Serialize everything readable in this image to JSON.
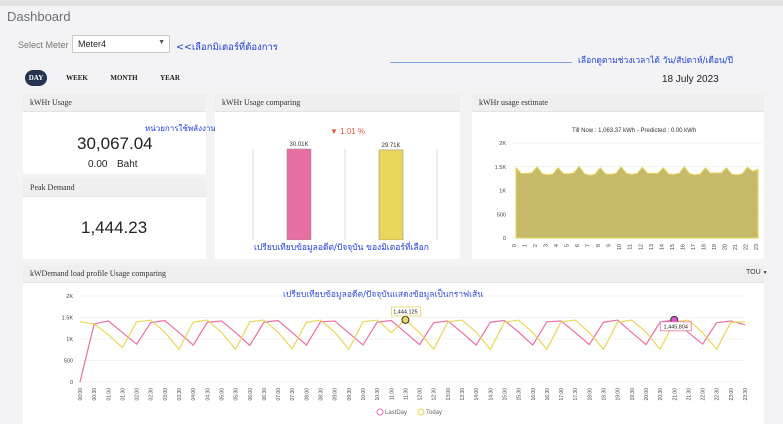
{
  "page_title": "Dashboard",
  "meter": {
    "label": "Select Meter",
    "value": "Meter4"
  },
  "annotations": {
    "select_meter": "<<เลือกมิเตอร์ที่ต้องการ",
    "date_pick": "เลือกดูตามช่วงเวลาได้ วัน/สัปดาห์/เดือน/ปี",
    "unit": "หน่วยการใช้พลังงาน",
    "compare": "เปรียบเทียบข้อมูลอดีต/ปัจจุบัน ของมิเตอร์ที่เลือก",
    "profile": "เปรียบเทียบข้อมูลอดีต/ปัจจุบันแสดงข้อมูลเป็นกราฟเส้น"
  },
  "tabs": [
    "DAY",
    "WEEK",
    "MONTH",
    "YEAR"
  ],
  "active_tab": "DAY",
  "date": "18 July 2023",
  "usage": {
    "title": "kWHr Usage",
    "value": "30,067.04",
    "baht_value": "0.00",
    "baht_unit": "Baht"
  },
  "peak": {
    "title": "Peak Demand",
    "value": "1,444.23"
  },
  "comparing": {
    "title": "kWHr Usage comparing",
    "change": "▼ 1.01 %"
  },
  "estimate": {
    "title": "kWHr usage estimate",
    "subtitle": "Till Now : 1,063.37 kWh - Predicted : 0.00 kWh"
  },
  "profile": {
    "title": "kWDemand load profile Usage comparing",
    "tou_label": "TOU"
  },
  "colors": {
    "pink": "#e86fa4",
    "yellow": "#ead65a",
    "olive": "#c6b96a",
    "navy": "#26334e",
    "annot_blue": "#1f3fd6",
    "down_red": "#e05b3d"
  },
  "chart_data": [
    {
      "type": "bar",
      "categories": [
        "",
        ""
      ],
      "values": [
        30.01,
        29.71
      ],
      "data_labels": [
        "30.01K",
        "29.71K"
      ],
      "colors": [
        "#e86fa4",
        "#ead65a"
      ]
    },
    {
      "type": "area",
      "title": "Till Now : 1,063.37 kWh - Predicted : 0.00 kWh",
      "x": [
        "0",
        "1",
        "2",
        "3",
        "4",
        "5",
        "6",
        "7",
        "8",
        "9",
        "10",
        "11",
        "12",
        "13",
        "14",
        "15",
        "16",
        "17",
        "18",
        "19",
        "20",
        "21",
        "22",
        "23"
      ],
      "y_ticks": [
        "0",
        "500",
        "1K",
        "1.5K",
        "2K"
      ],
      "ylim": [
        0,
        2000
      ],
      "values": [
        1480,
        1360,
        1500,
        1330,
        1480,
        1350,
        1510,
        1320,
        1480,
        1340,
        1500,
        1340,
        1490,
        1360,
        1480,
        1340,
        1500,
        1330,
        1480,
        1370,
        1480,
        1330,
        1490,
        1440
      ],
      "grid": true
    },
    {
      "type": "line",
      "x": [
        "00:00",
        "00:30",
        "01:00",
        "01:30",
        "02:00",
        "02:30",
        "03:00",
        "03:30",
        "04:00",
        "04:30",
        "05:00",
        "05:30",
        "06:00",
        "06:30",
        "07:00",
        "07:30",
        "08:00",
        "08:30",
        "09:00",
        "09:30",
        "10:00",
        "10:30",
        "11:00",
        "11:30",
        "12:00",
        "12:30",
        "13:00",
        "13:30",
        "14:00",
        "14:30",
        "15:00",
        "15:30",
        "16:00",
        "16:30",
        "17:00",
        "17:30",
        "18:00",
        "18:30",
        "19:00",
        "19:30",
        "20:00",
        "20:30",
        "21:00",
        "21:30",
        "22:00",
        "22:30",
        "23:00",
        "23:30"
      ],
      "y_ticks": [
        "0",
        "500",
        "1K",
        "1.5K",
        "2K"
      ],
      "ylim": [
        0,
        2000
      ],
      "legend": [
        "LastDay",
        "Today"
      ],
      "legend_position": "bottom",
      "annotations": [
        "1,444.125",
        "1,445.804"
      ],
      "series": [
        {
          "name": "LastDay",
          "color": "#e86fa4",
          "values": [
            0,
            1350,
            1420,
            1150,
            880,
            1380,
            1430,
            1150,
            860,
            1390,
            1420,
            1150,
            850,
            1390,
            1430,
            1150,
            860,
            1400,
            1420,
            1140,
            860,
            1390,
            1430,
            1150,
            870,
            1380,
            1420,
            1150,
            860,
            1390,
            1430,
            1160,
            860,
            1400,
            1420,
            1150,
            870,
            1390,
            1440,
            1150,
            870,
            1390,
            1446,
            1150,
            880,
            1380,
            1420,
            1330
          ]
        },
        {
          "name": "Today",
          "color": "#ead65a",
          "values": [
            1400,
            1350,
            1100,
            800,
            1400,
            1440,
            1160,
            760,
            1390,
            1440,
            1150,
            760,
            1400,
            1440,
            1160,
            770,
            1390,
            1440,
            1160,
            760,
            1400,
            1440,
            1150,
            1444,
            1150,
            760,
            1400,
            1440,
            1160,
            760,
            1390,
            1440,
            1150,
            760,
            1400,
            1440,
            1150,
            760,
            1390,
            1440,
            1160,
            760,
            1400,
            1440,
            1150,
            760,
            1390,
            1400
          ]
        }
      ]
    }
  ]
}
